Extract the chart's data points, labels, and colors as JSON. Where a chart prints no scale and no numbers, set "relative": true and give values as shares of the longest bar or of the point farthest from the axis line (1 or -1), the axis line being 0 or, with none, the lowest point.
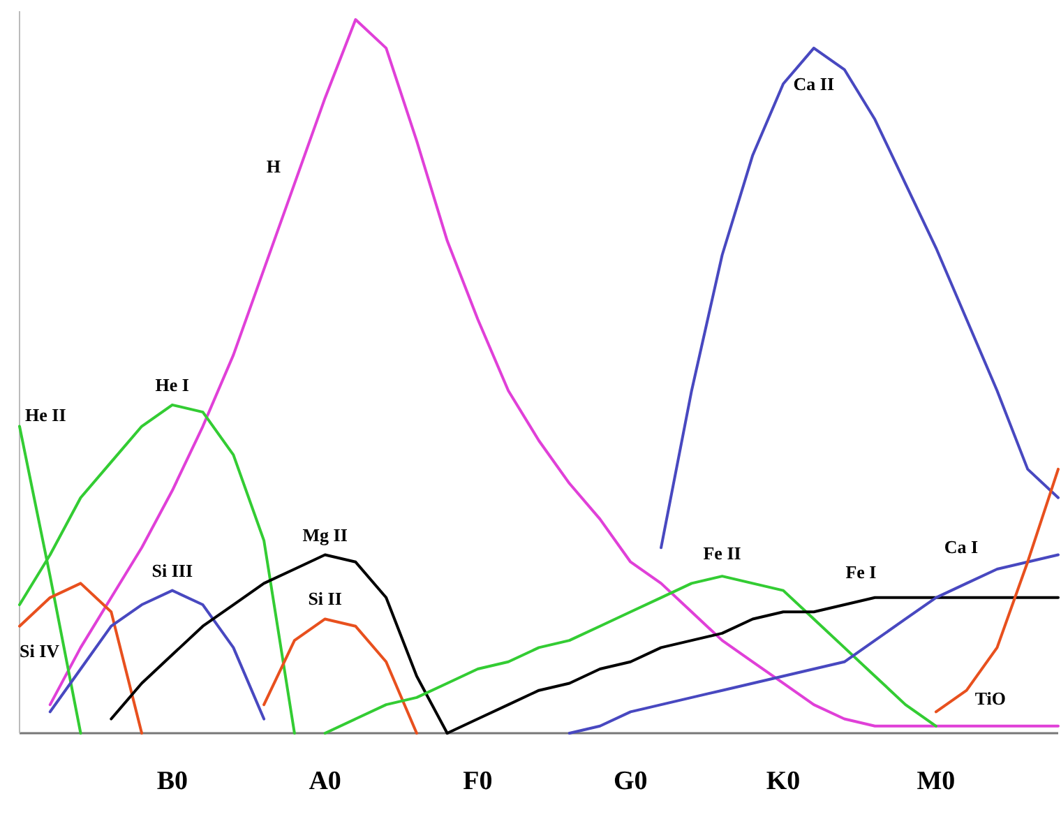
{
  "chart_data": {
    "type": "line",
    "relative": true,
    "categories": [
      null,
      null,
      null,
      null,
      null,
      "B0",
      null,
      null,
      null,
      null,
      "A0",
      null,
      null,
      null,
      null,
      "F0",
      null,
      null,
      null,
      null,
      "G0",
      null,
      null,
      null,
      null,
      "K0",
      null,
      null,
      null,
      null,
      "M0",
      null,
      null,
      null,
      null
    ],
    "series": [
      {
        "name": "H",
        "color": "#e040d8",
        "values": [
          null,
          0.04,
          0.12,
          0.19,
          0.26,
          0.34,
          0.43,
          0.53,
          0.65,
          0.77,
          0.89,
          1,
          0.96,
          0.83,
          0.69,
          0.58,
          0.48,
          0.41,
          0.35,
          0.3,
          0.24,
          0.21,
          0.17,
          0.13,
          0.1,
          0.07,
          0.04,
          0.02,
          0.01,
          0.01,
          0.01,
          0.01,
          0.01,
          0.01,
          0.01
        ]
      },
      {
        "name": "Ca II",
        "color": "#4848c0",
        "values": [
          null,
          null,
          null,
          null,
          null,
          null,
          null,
          null,
          null,
          null,
          null,
          null,
          null,
          null,
          null,
          null,
          null,
          null,
          null,
          null,
          null,
          0.26,
          0.48,
          0.67,
          0.81,
          0.91,
          0.96,
          0.93,
          0.86,
          0.77,
          0.68,
          0.58,
          0.48,
          0.37,
          0.33
        ]
      },
      {
        "name": "He II",
        "color": "#33cc33",
        "values": [
          0.43,
          0.22,
          0,
          null,
          null,
          null,
          null,
          null,
          null,
          null,
          null,
          null,
          null,
          null,
          null,
          null,
          null,
          null,
          null,
          null,
          null,
          null,
          null,
          null,
          null,
          null,
          null,
          null,
          null,
          null,
          null,
          null,
          null,
          null,
          null
        ]
      },
      {
        "name": "He I",
        "color": "#33cc33",
        "values": [
          0.18,
          0.25,
          0.33,
          0.38,
          0.43,
          0.46,
          0.45,
          0.39,
          0.27,
          0,
          null,
          null,
          null,
          null,
          null,
          null,
          null,
          null,
          null,
          null,
          null,
          null,
          null,
          null,
          null,
          null,
          null,
          null,
          null,
          null,
          null,
          null,
          null,
          null,
          null
        ]
      },
      {
        "name": "Si IV",
        "color": "#e8501e",
        "values": [
          0.15,
          0.19,
          0.21,
          0.17,
          0,
          null,
          null,
          null,
          null,
          null,
          null,
          null,
          null,
          null,
          null,
          null,
          null,
          null,
          null,
          null,
          null,
          null,
          null,
          null,
          null,
          null,
          null,
          null,
          null,
          null,
          null,
          null,
          null,
          null,
          null
        ]
      },
      {
        "name": "Si III",
        "color": "#4848c0",
        "values": [
          null,
          0.03,
          0.09,
          0.15,
          0.18,
          0.2,
          0.18,
          0.12,
          0.02,
          null,
          null,
          null,
          null,
          null,
          null,
          null,
          null,
          null,
          null,
          null,
          null,
          null,
          null,
          null,
          null,
          null,
          null,
          null,
          null,
          null,
          null,
          null,
          null,
          null,
          null
        ]
      },
      {
        "name": "Mg II",
        "color": "#000000",
        "values": [
          null,
          null,
          null,
          0.02,
          0.07,
          0.11,
          0.15,
          0.18,
          0.21,
          0.23,
          0.25,
          0.24,
          0.19,
          0.08,
          0,
          null,
          null,
          null,
          null,
          null,
          null,
          null,
          null,
          null,
          null,
          null,
          null,
          null,
          null,
          null,
          null,
          null,
          null,
          null,
          null
        ]
      },
      {
        "name": "Si II",
        "color": "#e8501e",
        "values": [
          null,
          null,
          null,
          null,
          null,
          null,
          null,
          null,
          0.04,
          0.13,
          0.16,
          0.15,
          0.1,
          0,
          null,
          null,
          null,
          null,
          null,
          null,
          null,
          null,
          null,
          null,
          null,
          null,
          null,
          null,
          null,
          null,
          null,
          null,
          null,
          null,
          null
        ]
      },
      {
        "name": "Fe II",
        "color": "#33cc33",
        "values": [
          null,
          null,
          null,
          null,
          null,
          null,
          null,
          null,
          null,
          null,
          0,
          0.02,
          0.04,
          0.05,
          0.07,
          0.09,
          0.1,
          0.12,
          0.13,
          0.15,
          0.17,
          0.19,
          0.21,
          0.22,
          0.21,
          0.2,
          0.16,
          0.12,
          0.08,
          0.04,
          0.01,
          null,
          null,
          null,
          null
        ]
      },
      {
        "name": "Fe I",
        "color": "#000000",
        "values": [
          null,
          null,
          null,
          null,
          null,
          null,
          null,
          null,
          null,
          null,
          null,
          null,
          null,
          null,
          0,
          0.02,
          0.04,
          0.06,
          0.07,
          0.09,
          0.1,
          0.12,
          0.13,
          0.14,
          0.16,
          0.17,
          0.17,
          0.18,
          0.19,
          0.19,
          0.19,
          0.19,
          0.19,
          0.19,
          0.19
        ]
      },
      {
        "name": "Ca I",
        "color": "#4848c0",
        "values": [
          null,
          null,
          null,
          null,
          null,
          null,
          null,
          null,
          null,
          null,
          null,
          null,
          null,
          null,
          null,
          null,
          null,
          null,
          0,
          0.01,
          0.03,
          0.04,
          0.05,
          0.06,
          0.07,
          0.08,
          0.09,
          0.1,
          0.13,
          0.16,
          0.19,
          0.21,
          0.23,
          0.24,
          0.25
        ]
      },
      {
        "name": "TiO",
        "color": "#e8501e",
        "values": [
          null,
          null,
          null,
          null,
          null,
          null,
          null,
          null,
          null,
          null,
          null,
          null,
          null,
          null,
          null,
          null,
          null,
          null,
          null,
          null,
          null,
          null,
          null,
          null,
          null,
          null,
          null,
          null,
          null,
          null,
          0.03,
          0.06,
          0.12,
          0.24,
          0.37
        ]
      }
    ]
  }
}
